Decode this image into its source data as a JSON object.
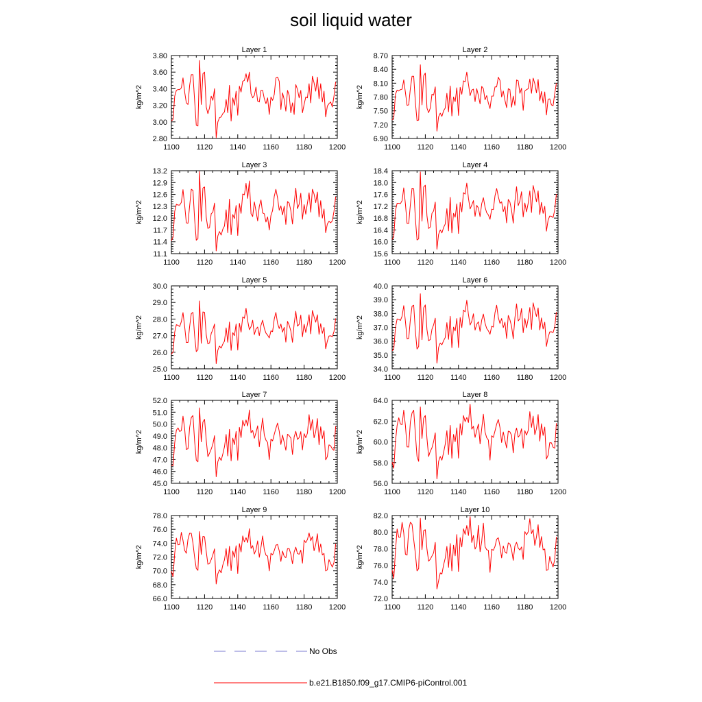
{
  "figure": {
    "title": "soil liquid water",
    "legend": [
      {
        "label": "No Obs",
        "color": "#7b7bd0",
        "style": "dashed"
      },
      {
        "label": "b.e21.B1850.f09_g17.CMIP6-piControl.001",
        "color": "#ff0000",
        "style": "solid"
      }
    ]
  },
  "chart_data": [
    {
      "type": "line",
      "title": "Layer 1",
      "ylabel": "kg/m^2",
      "xlim": [
        1100,
        1200
      ],
      "ylim": [
        2.8,
        3.8
      ],
      "xticks": [
        1100,
        1120,
        1140,
        1160,
        1180,
        1200
      ],
      "yticks": [
        "2.80",
        "3.00",
        "3.20",
        "3.40",
        "3.60",
        "3.80"
      ],
      "x_start": 1100,
      "values": [
        3.01,
        3.03,
        3.31,
        3.38,
        3.39,
        3.39,
        3.41,
        3.53,
        3.36,
        3.23,
        3.21,
        3.44,
        3.57,
        3.57,
        3.26,
        2.96,
        2.95,
        3.74,
        3.21,
        3.58,
        3.6,
        3.18,
        3.1,
        3.17,
        3.31,
        3.26,
        3.4,
        2.81,
        3.0,
        3.05,
        3.06,
        3.1,
        3.12,
        3.27,
        3.11,
        3.44,
        3.01,
        3.29,
        3.2,
        3.37,
        3.08,
        3.43,
        3.36,
        3.49,
        3.5,
        3.58,
        3.48,
        3.6,
        3.34,
        3.29,
        3.32,
        3.42,
        3.25,
        3.24,
        3.38,
        3.38,
        3.28,
        3.22,
        3.29,
        3.09,
        3.3,
        3.26,
        3.33,
        3.53,
        3.54,
        3.49,
        3.15,
        3.35,
        3.27,
        3.13,
        3.38,
        3.32,
        3.11,
        3.23,
        3.09,
        3.45,
        3.39,
        3.29,
        3.38,
        3.11,
        3.21,
        3.3,
        3.29,
        3.46,
        3.23,
        3.55,
        3.47,
        3.37,
        3.54,
        3.28,
        3.46,
        3.24,
        3.37,
        3.06,
        3.19,
        3.22,
        3.24,
        3.18,
        3.31,
        3.48
      ]
    },
    {
      "type": "line",
      "title": "Layer 2",
      "ylabel": "kg/m^2",
      "xlim": [
        1100,
        1200
      ],
      "ylim": [
        6.9,
        8.7
      ],
      "xticks": [
        1100,
        1120,
        1140,
        1160,
        1180,
        1200
      ],
      "yticks": [
        "6.90",
        "7.20",
        "7.50",
        "7.80",
        "8.10",
        "8.40",
        "8.70"
      ],
      "x_start": 1100,
      "values": [
        7.3,
        7.35,
        7.86,
        7.95,
        7.93,
        7.96,
        7.97,
        8.17,
        7.9,
        7.62,
        7.63,
        7.99,
        8.25,
        8.25,
        7.69,
        7.29,
        7.3,
        8.5,
        7.63,
        8.26,
        8.32,
        7.56,
        7.46,
        7.56,
        7.86,
        7.84,
        8.02,
        7.06,
        7.37,
        7.45,
        7.38,
        7.5,
        7.56,
        7.88,
        7.48,
        8.04,
        7.39,
        7.8,
        7.7,
        8.0,
        7.4,
        8.01,
        7.86,
        8.15,
        8.13,
        8.34,
        8.08,
        7.83,
        7.95,
        7.97,
        7.7,
        7.98,
        7.83,
        7.65,
        8.03,
        7.98,
        7.74,
        7.83,
        7.67,
        7.55,
        7.82,
        7.82,
        8.02,
        8.02,
        8.23,
        8.16,
        7.8,
        7.93,
        7.73,
        7.57,
        7.98,
        7.96,
        7.58,
        7.82,
        7.62,
        8.17,
        8.15,
        7.88,
        7.99,
        7.51,
        7.93,
        7.96,
        7.98,
        8.19,
        7.88,
        8.21,
        8.09,
        7.89,
        8.18,
        7.72,
        7.92,
        7.67,
        7.91,
        7.41,
        7.75,
        7.76,
        7.63,
        7.61,
        7.87,
        8.1
      ]
    },
    {
      "type": "line",
      "title": "Layer 3",
      "ylabel": "kg/m^2",
      "xlim": [
        1100,
        1200
      ],
      "ylim": [
        11.1,
        13.2
      ],
      "xticks": [
        1100,
        1120,
        1140,
        1160,
        1180,
        1200
      ],
      "yticks": [
        "11.1",
        "11.4",
        "11.7",
        "12.0",
        "12.3",
        "12.6",
        "12.9",
        "13.2"
      ],
      "x_start": 1100,
      "values": [
        11.43,
        11.52,
        12.17,
        12.35,
        12.33,
        12.33,
        12.4,
        12.72,
        12.33,
        11.88,
        11.87,
        12.31,
        12.73,
        12.7,
        11.98,
        11.44,
        11.48,
        13.18,
        11.92,
        12.76,
        12.79,
        12.02,
        11.74,
        11.76,
        12.11,
        12.15,
        12.38,
        11.17,
        11.55,
        11.66,
        11.57,
        11.72,
        11.8,
        12.21,
        11.63,
        12.48,
        11.58,
        12.09,
        11.99,
        12.32,
        11.56,
        12.37,
        12.12,
        12.61,
        12.59,
        12.88,
        12.5,
        12.94,
        12.11,
        12.04,
        12.41,
        12.18,
        11.93,
        12.3,
        12.46,
        12.13,
        12.11,
        11.9,
        12.03,
        11.7,
        12.07,
        12.19,
        12.55,
        12.73,
        12.51,
        12.2,
        12.31,
        12.08,
        12.3,
        11.84,
        12.42,
        12.38,
        12.19,
        11.85,
        12.37,
        12.76,
        12.24,
        12.35,
        12.63,
        11.97,
        12.34,
        12.1,
        12.38,
        12.64,
        12.15,
        12.73,
        12.61,
        12.39,
        12.66,
        12.03,
        12.44,
        12.0,
        12.23,
        11.63,
        11.85,
        11.92,
        11.88,
        11.93,
        12.17,
        12.54
      ]
    },
    {
      "type": "line",
      "title": "Layer 4",
      "ylabel": "kg/m^2",
      "xlim": [
        1100,
        1200
      ],
      "ylim": [
        15.6,
        18.4
      ],
      "xticks": [
        1100,
        1120,
        1140,
        1160,
        1180,
        1200
      ],
      "yticks": [
        "15.6",
        "16.0",
        "16.4",
        "16.8",
        "17.2",
        "17.6",
        "18.0",
        "18.4"
      ],
      "x_start": 1100,
      "values": [
        16.08,
        16.18,
        17.05,
        17.3,
        17.3,
        17.29,
        17.39,
        17.82,
        17.28,
        16.62,
        16.62,
        17.26,
        17.81,
        17.79,
        16.8,
        16.06,
        16.1,
        18.36,
        16.7,
        17.85,
        17.91,
        16.87,
        16.45,
        16.5,
        16.96,
        17.04,
        17.34,
        15.75,
        16.25,
        16.4,
        16.3,
        16.48,
        16.6,
        17.12,
        16.37,
        17.5,
        16.3,
        16.96,
        16.83,
        17.28,
        16.28,
        17.33,
        17.01,
        17.66,
        17.61,
        17.98,
        17.47,
        17.11,
        17.24,
        17.39,
        16.86,
        17.23,
        17.14,
        16.85,
        17.29,
        17.49,
        17.17,
        16.98,
        16.91,
        16.76,
        17.1,
        17.09,
        17.55,
        17.8,
        17.53,
        17.3,
        17.35,
        17.02,
        17.2,
        16.64,
        17.43,
        17.34,
        17.06,
        16.63,
        17.36,
        17.86,
        17.22,
        17.38,
        17.69,
        16.84,
        17.31,
        17.01,
        17.3,
        17.72,
        16.99,
        17.9,
        17.65,
        17.35,
        17.72,
        16.92,
        17.33,
        16.96,
        17.2,
        16.36,
        16.73,
        16.87,
        16.86,
        16.82,
        17.07,
        17.61
      ]
    },
    {
      "type": "line",
      "title": "Layer 5",
      "ylabel": "kg/m^2",
      "xlim": [
        1100,
        1200
      ],
      "ylim": [
        25.0,
        30.0
      ],
      "xticks": [
        1100,
        1120,
        1140,
        1160,
        1180,
        1200
      ],
      "yticks": [
        "25.0",
        "26.0",
        "27.0",
        "28.0",
        "29.0",
        "30.0"
      ],
      "x_start": 1100,
      "values": [
        25.88,
        26.02,
        27.21,
        27.66,
        27.62,
        27.55,
        27.85,
        28.39,
        27.55,
        26.59,
        26.59,
        27.55,
        28.33,
        28.4,
        27.0,
        26.04,
        26.15,
        29.09,
        26.54,
        28.43,
        28.4,
        27.05,
        26.5,
        26.56,
        27.13,
        27.37,
        27.7,
        25.31,
        26.13,
        26.37,
        26.25,
        26.49,
        26.67,
        27.47,
        26.6,
        27.82,
        26.11,
        27.18,
        27.0,
        27.7,
        26.13,
        27.75,
        27.21,
        28.13,
        28.05,
        28.65,
        27.89,
        27.36,
        27.54,
        27.93,
        27.06,
        27.4,
        27.52,
        27.0,
        27.62,
        27.93,
        27.44,
        27.15,
        27.03,
        26.86,
        27.29,
        27.24,
        28.0,
        28.4,
        27.74,
        27.43,
        27.7,
        27.21,
        27.5,
        26.61,
        27.86,
        27.63,
        27.28,
        26.6,
        27.72,
        28.47,
        27.57,
        27.68,
        28.24,
        26.93,
        27.69,
        27.19,
        27.68,
        28.26,
        27.11,
        28.52,
        28.14,
        27.81,
        28.26,
        27.08,
        27.72,
        27.14,
        27.5,
        26.21,
        26.67,
        26.98,
        26.99,
        26.94,
        27.24,
        28.04
      ]
    },
    {
      "type": "line",
      "title": "Layer 6",
      "ylabel": "kg/m^2",
      "xlim": [
        1100,
        1200
      ],
      "ylim": [
        34.0,
        40.0
      ],
      "xticks": [
        1100,
        1120,
        1140,
        1160,
        1180,
        1200
      ],
      "yticks": [
        "34.0",
        "35.0",
        "36.0",
        "37.0",
        "38.0",
        "39.0",
        "40.0"
      ],
      "x_start": 1100,
      "values": [
        35.3,
        35.42,
        36.96,
        37.61,
        37.58,
        37.5,
        37.81,
        38.57,
        37.44,
        36.18,
        36.2,
        37.59,
        38.53,
        38.6,
        36.74,
        35.43,
        35.61,
        39.43,
        36.1,
        38.41,
        38.62,
        36.83,
        36.04,
        36.11,
        36.86,
        37.18,
        37.66,
        34.41,
        35.55,
        35.87,
        35.74,
        36.03,
        36.26,
        37.34,
        36.13,
        37.8,
        35.53,
        37.02,
        36.74,
        37.64,
        35.54,
        37.71,
        36.98,
        38.25,
        38.12,
        38.95,
        37.93,
        37.17,
        37.44,
        37.98,
        36.8,
        37.23,
        37.4,
        36.71,
        37.53,
        37.96,
        37.3,
        36.92,
        36.75,
        36.5,
        37.08,
        37.02,
        38.06,
        38.6,
        37.71,
        37.28,
        37.64,
        36.98,
        37.38,
        36.2,
        37.86,
        37.55,
        37.07,
        36.17,
        37.68,
        38.7,
        37.47,
        37.62,
        38.37,
        36.61,
        37.64,
        36.96,
        37.62,
        38.43,
        36.85,
        38.77,
        38.24,
        37.79,
        38.41,
        36.81,
        37.68,
        36.88,
        37.37,
        35.62,
        36.26,
        36.67,
        36.68,
        36.62,
        37.02,
        38.11
      ]
    },
    {
      "type": "line",
      "title": "Layer 7",
      "ylabel": "kg/m^2",
      "xlim": [
        1100,
        1200
      ],
      "ylim": [
        45.0,
        52.0
      ],
      "xticks": [
        1100,
        1120,
        1140,
        1160,
        1180,
        1200
      ],
      "yticks": [
        "45.0",
        "46.0",
        "47.0",
        "48.0",
        "49.0",
        "50.0",
        "51.0",
        "52.0"
      ],
      "x_start": 1100,
      "values": [
        46.55,
        46.48,
        48.42,
        49.48,
        49.68,
        49.37,
        49.45,
        50.66,
        49.61,
        47.86,
        47.92,
        49.71,
        50.56,
        50.72,
        48.58,
        46.96,
        46.81,
        51.36,
        48.5,
        50.18,
        50.4,
        48.66,
        47.25,
        47.55,
        47.89,
        48.3,
        49.02,
        45.55,
        46.83,
        47.2,
        46.93,
        47.47,
        48.08,
        49.12,
        47.31,
        49.55,
        46.9,
        48.81,
        48.27,
        49.38,
        46.95,
        49.72,
        48.86,
        50.31,
        49.85,
        50.35,
        49.84,
        51.18,
        49.26,
        49.47,
        48.8,
        49.28,
        49.85,
        48.09,
        49.4,
        50.5,
        49.07,
        48.64,
        48.45,
        47.0,
        48.73,
        48.58,
        49.13,
        49.64,
        50.08,
        49.4,
        48.28,
        49.07,
        48.45,
        47.79,
        49.14,
        49.02,
        48.82,
        47.43,
        48.91,
        49.39,
        48.7,
        48.86,
        49.36,
        47.82,
        49.19,
        48.85,
        49.23,
        50.79,
        49.48,
        50.38,
        48.84,
        49.34,
        50.46,
        48.26,
        49.77,
        48.78,
        49.44,
        46.98,
        47.25,
        48.25,
        48.16,
        47.91,
        47.78,
        49.81
      ]
    },
    {
      "type": "line",
      "title": "Layer 8",
      "ylabel": "kg/m^2",
      "xlim": [
        1100,
        1200
      ],
      "ylim": [
        56.0,
        64.0
      ],
      "xticks": [
        1100,
        1120,
        1140,
        1160,
        1180,
        1200
      ],
      "yticks": [
        "56.0",
        "58.0",
        "60.0",
        "62.0",
        "64.0"
      ],
      "x_start": 1100,
      "values": [
        58.04,
        57.45,
        60.03,
        61.58,
        62.32,
        61.72,
        61.66,
        63.05,
        61.58,
        59.52,
        59.5,
        61.94,
        62.79,
        63.05,
        60.77,
        58.57,
        58.12,
        63.36,
        60.33,
        62.28,
        62.54,
        60.32,
        58.59,
        59.09,
        59.42,
        60.02,
        60.87,
        56.43,
        58.11,
        58.59,
        58.23,
        58.96,
        59.76,
        61.08,
        58.77,
        61.59,
        58.42,
        60.71,
        60.01,
        61.35,
        58.43,
        61.75,
        60.65,
        62.54,
        61.95,
        62.35,
        61.86,
        63.63,
        61.22,
        61.5,
        60.43,
        61.1,
        61.72,
        59.8,
        61.28,
        62.66,
        60.95,
        60.4,
        60.18,
        58.24,
        60.59,
        60.43,
        61.05,
        61.7,
        62.16,
        61.37,
        59.94,
        60.95,
        60.15,
        59.4,
        61.03,
        60.96,
        60.62,
        58.93,
        60.78,
        61.33,
        60.45,
        60.66,
        61.26,
        59.38,
        61.08,
        60.65,
        61.09,
        62.91,
        61.39,
        62.48,
        60.69,
        61.29,
        62.63,
        60.07,
        61.74,
        60.62,
        61.42,
        58.34,
        58.71,
        59.92,
        59.91,
        59.49,
        59.38,
        61.8
      ]
    },
    {
      "type": "line",
      "title": "Layer 9",
      "ylabel": "kg/m^2",
      "xlim": [
        1100,
        1200
      ],
      "ylim": [
        66.0,
        78.0
      ],
      "xticks": [
        1100,
        1120,
        1140,
        1160,
        1180,
        1200
      ],
      "yticks": [
        "66.0",
        "68.0",
        "70.0",
        "72.0",
        "74.0",
        "76.0",
        "78.0"
      ],
      "x_start": 1100,
      "values": [
        69.95,
        69.15,
        72.53,
        74.73,
        73.76,
        73.82,
        75.56,
        74.39,
        72.95,
        72.54,
        74.56,
        75.45,
        75.43,
        74.02,
        71.95,
        70.35,
        70.07,
        75.68,
        72.38,
        74.98,
        74.92,
        72.81,
        70.95,
        71.06,
        71.63,
        72.32,
        73.18,
        68.09,
        69.57,
        70.15,
        69.71,
        70.85,
        71.59,
        73.22,
        70.67,
        73.55,
        70.02,
        72.87,
        71.94,
        73.63,
        69.62,
        73.94,
        72.73,
        75.05,
        74.18,
        74.8,
        74.09,
        76.1,
        73.24,
        73.64,
        72.43,
        73.05,
        74.33,
        71.96,
        73.42,
        75.04,
        73.05,
        72.27,
        72.13,
        69.99,
        72.54,
        72.31,
        72.92,
        73.71,
        73.81,
        72.91,
        71.36,
        72.86,
        72.09,
        71.9,
        73.21,
        73.21,
        72.41,
        71.02,
        72.73,
        73.43,
        72.5,
        72.4,
        73.0,
        71.11,
        74.43,
        74.09,
        74.53,
        75.48,
        74.35,
        74.95,
        72.9,
        73.79,
        75.36,
        72.69,
        73.88,
        72.3,
        72.52,
        69.98,
        70.15,
        71.61,
        71.05,
        70.55,
        71.2,
        73.9
      ]
    },
    {
      "type": "line",
      "title": "Layer 10",
      "ylabel": "kg/m^2",
      "xlim": [
        1100,
        1200
      ],
      "ylim": [
        72.0,
        82.0
      ],
      "xticks": [
        1100,
        1120,
        1140,
        1160,
        1180,
        1200
      ],
      "yticks": [
        "72.0",
        "74.0",
        "76.0",
        "78.0",
        "80.0",
        "82.0"
      ],
      "x_start": 1100,
      "values": [
        75.42,
        74.43,
        77.7,
        80.39,
        79.38,
        79.4,
        81.18,
        79.92,
        77.33,
        77.23,
        80.29,
        81.19,
        80.95,
        79.11,
        77.44,
        75.32,
        75.61,
        81.67,
        77.89,
        80.18,
        80.29,
        77.94,
        76.5,
        76.73,
        77.12,
        77.5,
        78.76,
        73.15,
        74.13,
        75.08,
        74.95,
        76.03,
        76.86,
        78.28,
        75.75,
        78.63,
        75.32,
        78.43,
        77.14,
        79.71,
        75.26,
        79.33,
        78.22,
        80.41,
        79.73,
        80.79,
        79.59,
        81.87,
        78.75,
        79.59,
        77.96,
        78.36,
        80.81,
        77.64,
        78.88,
        81.07,
        78.25,
        77.88,
        77.81,
        75.15,
        77.93,
        77.81,
        78.28,
        79.14,
        79.32,
        78.34,
        76.89,
        78.33,
        77.63,
        77.44,
        78.7,
        78.58,
        77.86,
        76.6,
        78.35,
        78.77,
        78.08,
        77.84,
        78.21,
        76.71,
        80.06,
        79.68,
        80.03,
        81.61,
        79.82,
        80.31,
        78.4,
        79.42,
        80.89,
        78.16,
        79.46,
        77.86,
        77.97,
        75.38,
        75.49,
        77.07,
        76.35,
        75.81,
        76.68,
        79.43
      ]
    }
  ]
}
